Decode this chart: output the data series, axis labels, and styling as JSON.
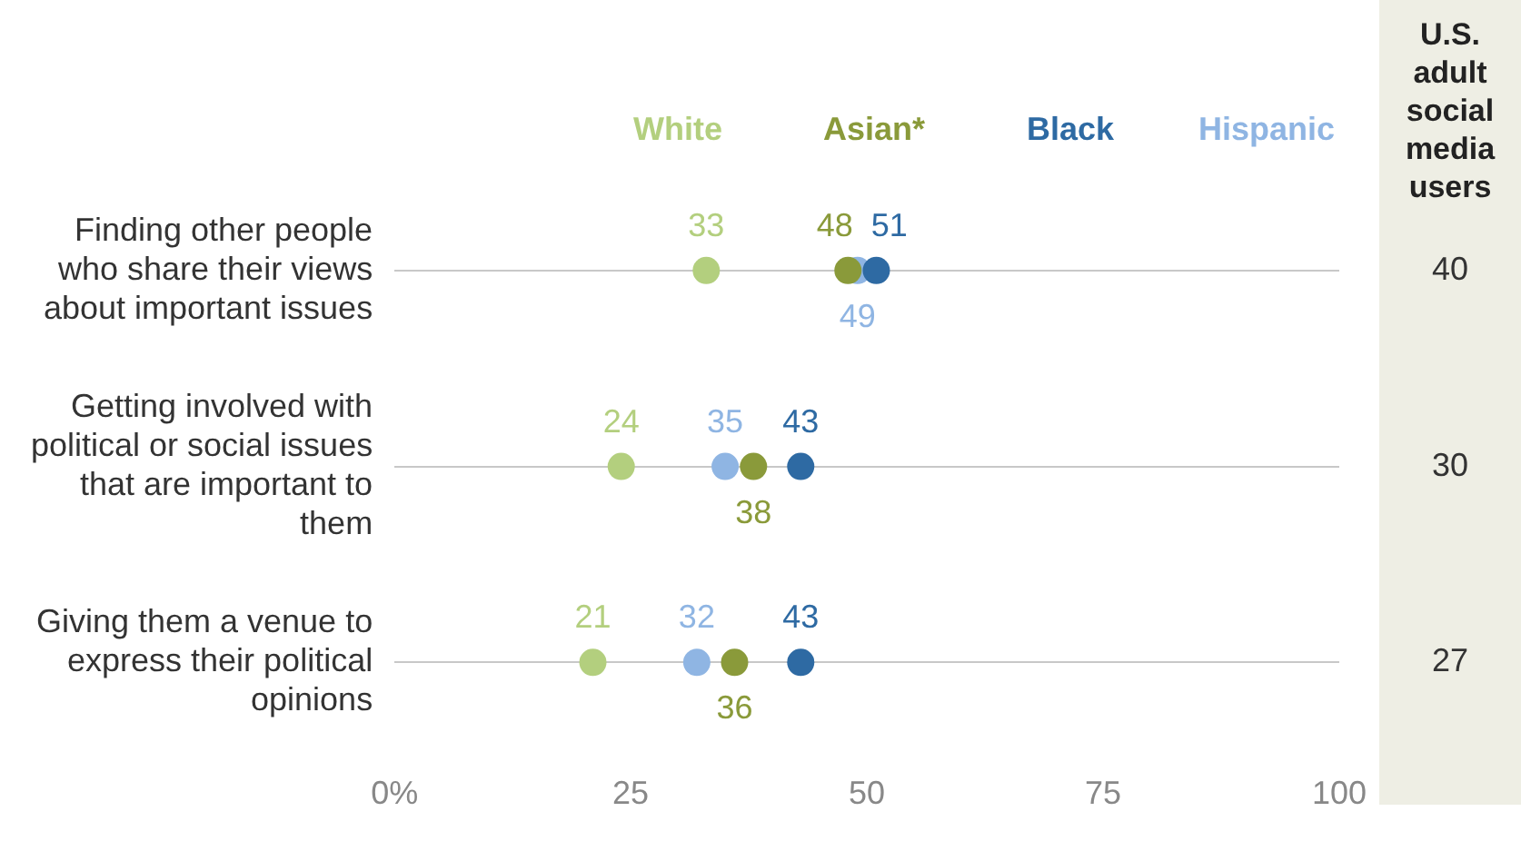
{
  "chart_data": {
    "type": "scatter",
    "orientation": "horizontal",
    "categories": [
      "Finding other people who share their views about important issues",
      "Getting involved with political or social issues that are important to them",
      "Giving them a venue to express their political opinions"
    ],
    "series": [
      {
        "name": "White",
        "color": "#b3cf7e",
        "values": [
          33,
          24,
          21
        ]
      },
      {
        "name": "Asian*",
        "color": "#8a9a3a",
        "values": [
          48,
          38,
          36
        ]
      },
      {
        "name": "Black",
        "color": "#2e6aa3",
        "values": [
          51,
          43,
          43
        ]
      },
      {
        "name": "Hispanic",
        "color": "#8fb5e3",
        "values": [
          49,
          35,
          32
        ]
      }
    ],
    "xlim": [
      0,
      100
    ],
    "xticks": [
      {
        "value": 0,
        "label": "0%"
      },
      25,
      50,
      75,
      100
    ],
    "grid": "y",
    "legend": "top",
    "marker": "circle",
    "data_labels": true,
    "annotations": [
      "U.S. adult social media users",
      "40",
      "30",
      "27"
    ]
  }
}
